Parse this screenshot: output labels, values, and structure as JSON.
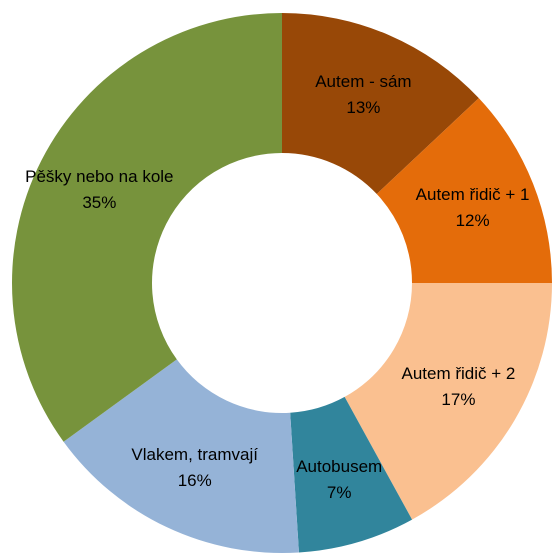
{
  "chart_data": {
    "type": "donut",
    "categories": [
      "Autem - sám",
      "Autem řidič + 1",
      "Autem řidič + 2",
      "Autobusem",
      "Vlakem, tramvají",
      "Pěšky nebo na kole"
    ],
    "values": [
      13,
      12,
      17,
      7,
      16,
      35
    ],
    "value_labels": [
      "13%",
      "12%",
      "17%",
      "7%",
      "16%",
      "35%"
    ],
    "colors": [
      "#984807",
      "#E46C0A",
      "#FAC090",
      "#31859C",
      "#95B3D7",
      "#77933C"
    ]
  }
}
